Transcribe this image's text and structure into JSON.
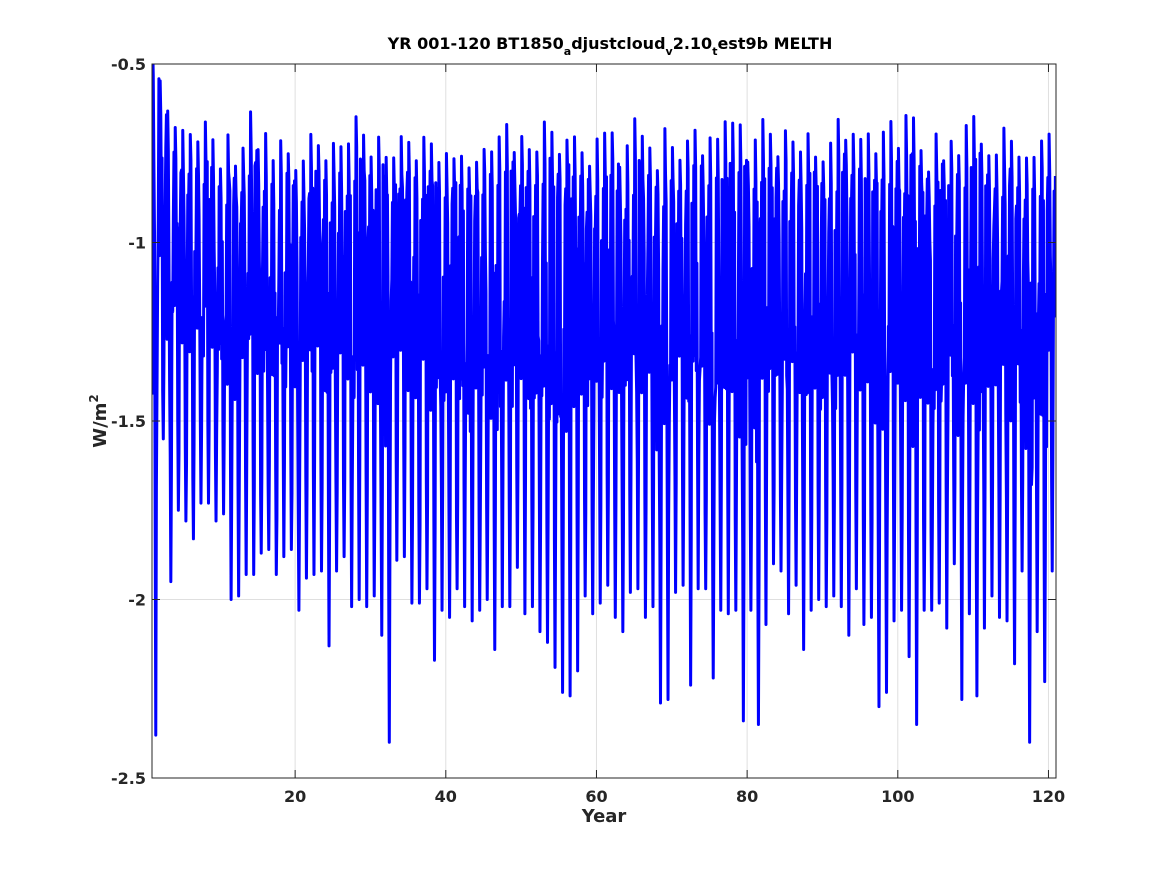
{
  "chart_data": {
    "type": "line",
    "title_parts": [
      {
        "text": "YR 001-120 BT1850",
        "sub": false
      },
      {
        "text": "a",
        "sub": true
      },
      {
        "text": "djustcloud",
        "sub": false
      },
      {
        "text": "v",
        "sub": true
      },
      {
        "text": "2.10",
        "sub": false
      },
      {
        "text": "t",
        "sub": true
      },
      {
        "text": "est9b MELTH",
        "sub": false
      }
    ],
    "xlabel": "Year",
    "ylabel_base": "W/m",
    "ylabel_sup": "2",
    "xlim": [
      1,
      121
    ],
    "ylim": [
      -2.5,
      -0.5
    ],
    "xticks": [
      20,
      40,
      60,
      80,
      100,
      120
    ],
    "xtick_labels": [
      "20",
      "40",
      "60",
      "80",
      "100",
      "120"
    ],
    "yticks": [
      -0.5,
      -1,
      -1.5,
      -2,
      -2.5
    ],
    "ytick_labels": [
      "-0.5",
      "-1",
      "-1.5",
      "-2",
      "-2.5"
    ],
    "grid": true,
    "series": [
      {
        "color": "#0000ff",
        "sampling": "monthly, years 1-120",
        "annual_minima": [
          -2.38,
          -1.55,
          -1.95,
          -1.75,
          -1.78,
          -1.83,
          -1.73,
          -1.73,
          -1.78,
          -1.76,
          -2.0,
          -1.99,
          -1.93,
          -1.93,
          -1.87,
          -1.86,
          -1.93,
          -1.88,
          -1.86,
          -2.03,
          -1.94,
          -1.93,
          -1.92,
          -2.13,
          -1.92,
          -1.88,
          -2.02,
          -2.0,
          -2.02,
          -1.99,
          -2.1,
          -2.4,
          -1.89,
          -1.88,
          -2.01,
          -2.01,
          -1.97,
          -2.17,
          -2.03,
          -2.05,
          -1.97,
          -2.02,
          -2.06,
          -2.03,
          -2.0,
          -2.14,
          -2.02,
          -2.02,
          -1.91,
          -2.04,
          -2.02,
          -2.09,
          -2.12,
          -2.19,
          -2.26,
          -2.27,
          -2.2,
          -1.99,
          -2.04,
          -2.01,
          -1.96,
          -2.05,
          -2.09,
          -1.98,
          -1.97,
          -2.05,
          -2.02,
          -2.29,
          -2.28,
          -1.98,
          -1.96,
          -2.24,
          -1.97,
          -1.97,
          -2.22,
          -2.03,
          -2.04,
          -2.03,
          -2.34,
          -2.03,
          -2.35,
          -2.07,
          -1.9,
          -1.92,
          -2.04,
          -1.96,
          -2.14,
          -2.03,
          -2.0,
          -2.02,
          -1.99,
          -2.02,
          -2.1,
          -1.97,
          -2.07,
          -2.05,
          -2.3,
          -2.26,
          -2.06,
          -2.03,
          -2.16,
          -2.35,
          -2.03,
          -2.03,
          -2.01,
          -2.08,
          -1.9,
          -2.28,
          -2.04,
          -2.27,
          -2.08,
          -1.99,
          -2.05,
          -2.06,
          -2.18,
          -1.92,
          -2.4,
          -2.09,
          -2.23,
          -1.92
        ],
        "annual_maxima": [
          -0.53,
          -0.64,
          -0.74,
          -0.76,
          -0.79,
          -0.76,
          -0.8,
          -0.76,
          -0.82,
          -0.86,
          -0.8,
          -0.86,
          -0.8,
          -0.73,
          -0.83,
          -0.8,
          -0.88,
          -0.8,
          -0.82,
          -0.87,
          -0.86,
          -0.78,
          -0.79,
          -0.85,
          -0.8,
          -0.84,
          -0.81,
          -0.73,
          -0.79,
          -0.85,
          -0.78,
          -0.85,
          -0.83,
          -0.79,
          -0.8,
          -0.87,
          -0.8,
          -0.82,
          -0.84,
          -0.83,
          -0.83,
          -0.85,
          -0.86,
          -0.84,
          -0.8,
          -0.84,
          -0.78,
          -0.77,
          -0.83,
          -0.78,
          -0.83,
          -0.81,
          -0.76,
          -0.8,
          -0.82,
          -0.78,
          -0.79,
          -0.82,
          -0.85,
          -0.81,
          -0.8,
          -0.76,
          -0.87,
          -0.83,
          -0.76,
          -0.81,
          -0.82,
          -0.86,
          -0.79,
          -0.82,
          -0.83,
          -0.78,
          -0.77,
          -0.84,
          -0.81,
          -0.82,
          -0.77,
          -0.77,
          -0.76,
          -0.84,
          -0.81,
          -0.76,
          -0.78,
          -0.82,
          -0.77,
          -0.81,
          -0.82,
          -0.8,
          -0.83,
          -0.84,
          -0.82,
          -0.75,
          -0.78,
          -0.79,
          -0.81,
          -0.8,
          -0.82,
          -0.8,
          -0.77,
          -0.84,
          -0.75,
          -0.76,
          -0.82,
          -0.87,
          -0.78,
          -0.84,
          -0.79,
          -0.82,
          -0.78,
          -0.75,
          -0.8,
          -0.83,
          -0.84,
          -0.78,
          -0.81,
          -0.86,
          -0.83,
          -0.86,
          -0.79,
          -0.8
        ]
      }
    ]
  }
}
